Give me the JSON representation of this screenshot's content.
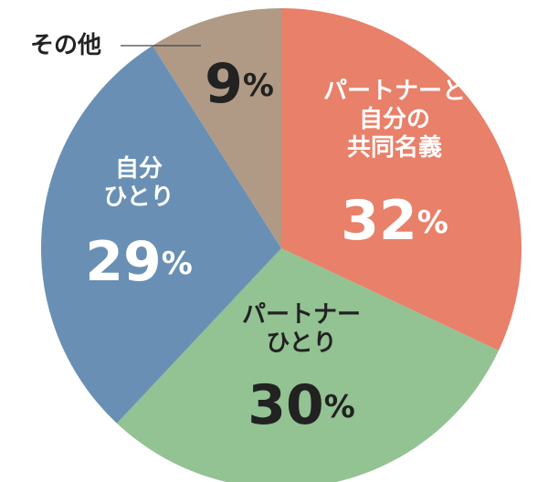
{
  "chart_data": {
    "type": "pie",
    "categories": [
      "パートナーと\n自分の\n共同名義",
      "パートナー\nひとり",
      "自分\nひとり",
      "その他"
    ],
    "values": [
      32,
      30,
      29,
      9
    ],
    "value_labels": [
      "32%",
      "30%",
      "29%",
      "9%"
    ],
    "colors": [
      "#e8806a",
      "#93c293",
      "#6990b4",
      "#b09a85"
    ]
  }
}
